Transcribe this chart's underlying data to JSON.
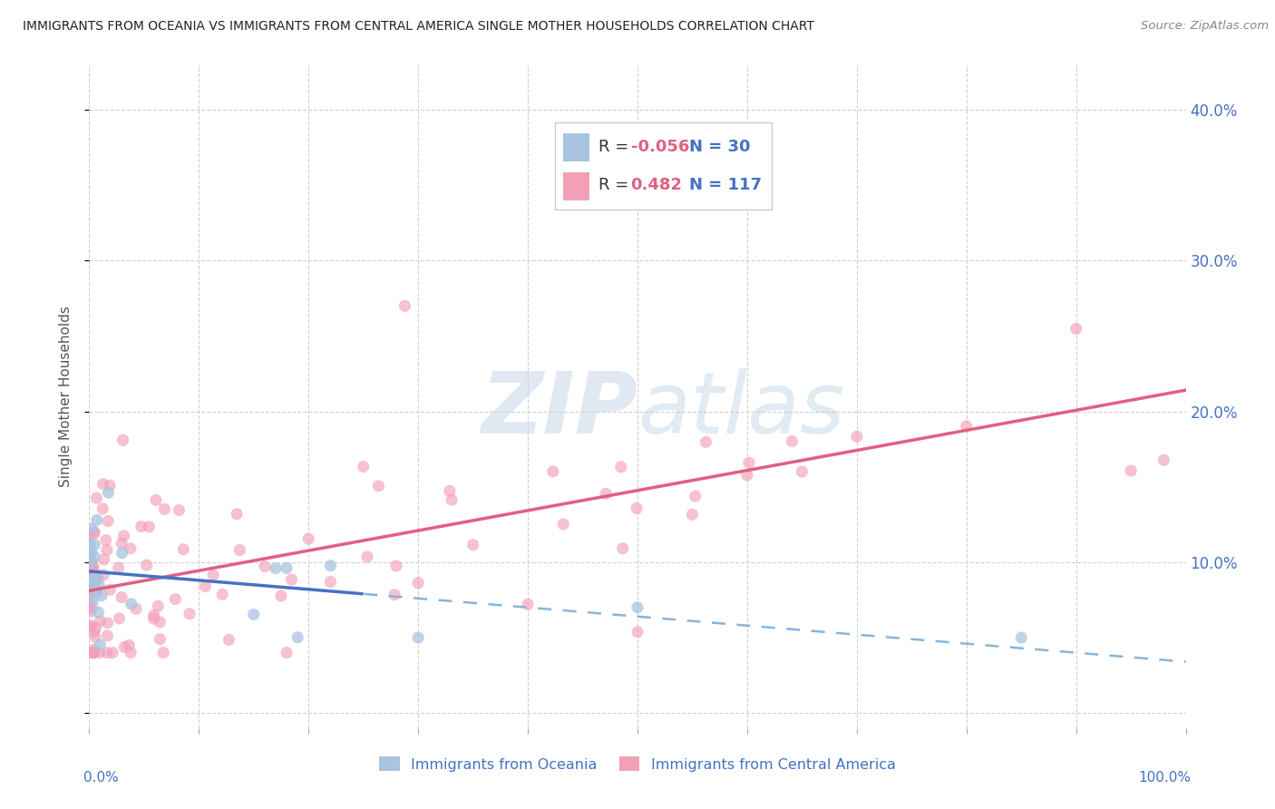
{
  "title": "IMMIGRANTS FROM OCEANIA VS IMMIGRANTS FROM CENTRAL AMERICA SINGLE MOTHER HOUSEHOLDS CORRELATION CHART",
  "source": "Source: ZipAtlas.com",
  "ylabel": "Single Mother Households",
  "ytick_vals": [
    0.0,
    0.1,
    0.2,
    0.3,
    0.4
  ],
  "ytick_labels": [
    "",
    "10.0%",
    "20.0%",
    "30.0%",
    "40.0%"
  ],
  "xlim": [
    0.0,
    1.0
  ],
  "ylim": [
    -0.01,
    0.43
  ],
  "legend_r_oceania": "-0.056",
  "legend_n_oceania": "30",
  "legend_r_central": "0.482",
  "legend_n_central": "117",
  "color_oceania": "#a8c4e0",
  "color_central": "#f2a0b8",
  "line_color_oceania_solid": "#4472c4",
  "line_color_oceania_dashed": "#89b4d8",
  "line_color_central": "#e06080",
  "background_color": "#ffffff",
  "r_color": "#e06080",
  "n_color": "#4472c4",
  "watermark_color": "#c8d8e8",
  "title_color": "#222222",
  "axis_label_color": "#4472c4",
  "ylabel_color": "#555555"
}
